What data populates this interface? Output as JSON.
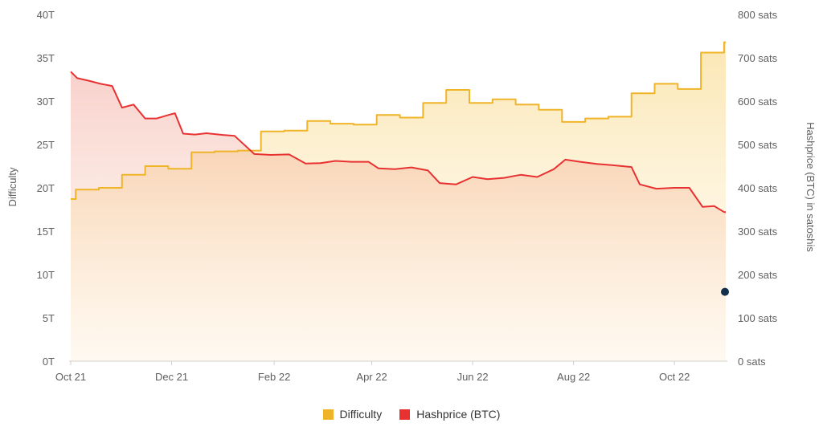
{
  "chart_data": {
    "type": "area",
    "x_tick_labels": [
      "Oct 21",
      "Dec 21",
      "Feb 22",
      "Apr 22",
      "Jun 22",
      "Aug 22",
      "Oct 22"
    ],
    "y_left": {
      "label": "Difficulty",
      "ticks": [
        "0T",
        "5T",
        "10T",
        "15T",
        "20T",
        "25T",
        "30T",
        "35T",
        "40T"
      ],
      "range": [
        0,
        40
      ]
    },
    "y_right": {
      "label": "Hashprice (BTC) in satoshis",
      "ticks": [
        "0 sats",
        "100 sats",
        "200 sats",
        "300 sats",
        "400 sats",
        "500 sats",
        "600 sats",
        "700 sats",
        "800 sats"
      ],
      "range": [
        0,
        800
      ]
    },
    "grid": false,
    "legend_position": "bottom-center",
    "series": [
      {
        "name": "Difficulty",
        "axis": "left",
        "color": "#f0b429",
        "step": true,
        "points": [
          [
            "2021-10-01",
            18.7
          ],
          [
            "2021-10-04",
            19.8
          ],
          [
            "2021-10-18",
            20.0
          ],
          [
            "2021-11-01",
            21.5
          ],
          [
            "2021-11-15",
            22.5
          ],
          [
            "2021-11-29",
            22.2
          ],
          [
            "2021-12-13",
            24.1
          ],
          [
            "2021-12-27",
            24.2
          ],
          [
            "2022-01-10",
            24.3
          ],
          [
            "2022-01-24",
            26.5
          ],
          [
            "2022-02-07",
            26.6
          ],
          [
            "2022-02-21",
            27.7
          ],
          [
            "2022-03-07",
            27.4
          ],
          [
            "2022-03-21",
            27.3
          ],
          [
            "2022-04-04",
            28.4
          ],
          [
            "2022-04-18",
            28.1
          ],
          [
            "2022-05-02",
            29.8
          ],
          [
            "2022-05-16",
            31.3
          ],
          [
            "2022-05-30",
            29.8
          ],
          [
            "2022-06-13",
            30.2
          ],
          [
            "2022-06-27",
            29.6
          ],
          [
            "2022-07-11",
            29.0
          ],
          [
            "2022-07-25",
            27.6
          ],
          [
            "2022-08-08",
            28.0
          ],
          [
            "2022-08-22",
            28.2
          ],
          [
            "2022-09-05",
            30.9
          ],
          [
            "2022-09-19",
            32.0
          ],
          [
            "2022-10-03",
            31.4
          ],
          [
            "2022-10-17",
            35.6
          ],
          [
            "2022-10-31",
            36.8
          ]
        ]
      },
      {
        "name": "Hashprice (BTC)",
        "axis": "right",
        "color": "#e83232",
        "step": false,
        "points": [
          [
            "2021-10-01",
            668
          ],
          [
            "2021-10-05",
            653
          ],
          [
            "2021-10-12",
            647
          ],
          [
            "2021-10-19",
            640
          ],
          [
            "2021-10-26",
            635
          ],
          [
            "2021-11-01",
            585
          ],
          [
            "2021-11-08",
            592
          ],
          [
            "2021-11-15",
            560
          ],
          [
            "2021-11-22",
            560
          ],
          [
            "2021-11-29",
            568
          ],
          [
            "2021-12-03",
            572
          ],
          [
            "2021-12-08",
            525
          ],
          [
            "2021-12-15",
            523
          ],
          [
            "2021-12-22",
            526
          ],
          [
            "2022-01-01",
            522
          ],
          [
            "2022-01-08",
            520
          ],
          [
            "2022-01-20",
            478
          ],
          [
            "2022-01-30",
            476
          ],
          [
            "2022-02-10",
            477
          ],
          [
            "2022-02-20",
            456
          ],
          [
            "2022-03-01",
            457
          ],
          [
            "2022-03-10",
            462
          ],
          [
            "2022-03-20",
            460
          ],
          [
            "2022-03-30",
            460
          ],
          [
            "2022-04-05",
            445
          ],
          [
            "2022-04-15",
            443
          ],
          [
            "2022-04-25",
            447
          ],
          [
            "2022-05-05",
            440
          ],
          [
            "2022-05-12",
            411
          ],
          [
            "2022-05-22",
            408
          ],
          [
            "2022-06-01",
            425
          ],
          [
            "2022-06-10",
            420
          ],
          [
            "2022-06-20",
            423
          ],
          [
            "2022-06-30",
            430
          ],
          [
            "2022-07-10",
            425
          ],
          [
            "2022-07-20",
            443
          ],
          [
            "2022-07-27",
            465
          ],
          [
            "2022-08-05",
            460
          ],
          [
            "2022-08-15",
            455
          ],
          [
            "2022-08-25",
            452
          ],
          [
            "2022-09-05",
            448
          ],
          [
            "2022-09-10",
            408
          ],
          [
            "2022-09-20",
            398
          ],
          [
            "2022-10-01",
            400
          ],
          [
            "2022-10-10",
            400
          ],
          [
            "2022-10-18",
            356
          ],
          [
            "2022-10-25",
            358
          ],
          [
            "2022-10-31",
            344
          ]
        ]
      }
    ]
  },
  "legend": {
    "difficulty_label": "Difficulty",
    "hashprice_label": "Hashprice (BTC)"
  }
}
